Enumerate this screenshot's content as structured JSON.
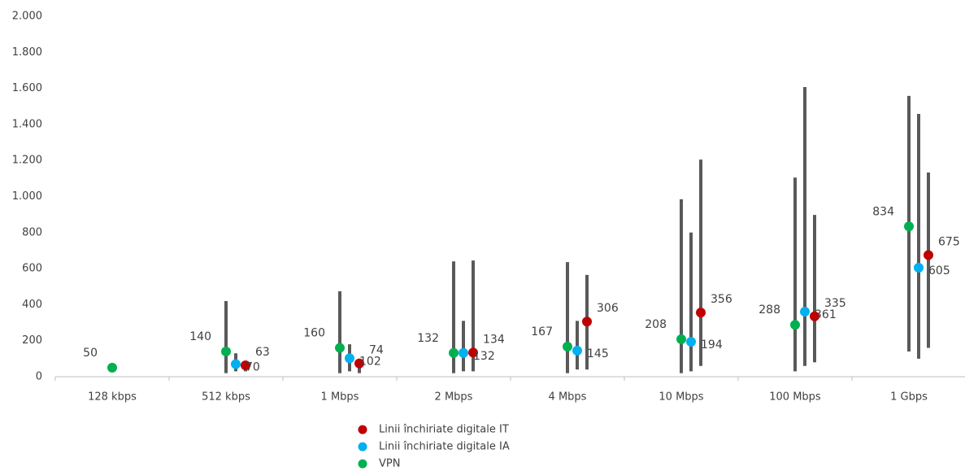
{
  "chart_data": {
    "type": "dot-range",
    "categories": [
      "128 kbps",
      "512 kbps",
      "1 Mbps",
      "2 Mbps",
      "4 Mbps",
      "10 Mbps",
      "100 Mbps",
      "1 Gbps"
    ],
    "series": [
      {
        "name": "Linii închiriate digitale IT",
        "color": "#c00000",
        "label_color": "#c00000",
        "values": [
          null,
          63,
          74,
          134,
          306,
          356,
          335,
          675
        ],
        "min": [
          null,
          30,
          20,
          30,
          40,
          60,
          80,
          160
        ],
        "max": [
          null,
          80,
          90,
          645,
          565,
          1205,
          898,
          1133
        ]
      },
      {
        "name": "Linii închiriate digitale IA",
        "color": "#00b0f0",
        "label_color": "#00b0f0",
        "values": [
          null,
          70,
          102,
          132,
          145,
          194,
          361,
          605
        ],
        "min": [
          null,
          30,
          30,
          30,
          40,
          30,
          60,
          100
        ],
        "max": [
          null,
          130,
          180,
          310,
          310,
          800,
          1607,
          1458
        ]
      },
      {
        "name": "VPN",
        "color": "#00b050",
        "label_color": "#1f3864",
        "values": [
          50,
          140,
          160,
          132,
          167,
          208,
          288,
          834
        ],
        "min": [
          null,
          20,
          20,
          20,
          20,
          20,
          30,
          140
        ],
        "max": [
          null,
          420,
          474,
          640,
          636,
          985,
          1105,
          1558
        ]
      }
    ],
    "range_color": "#595959",
    "ylim": [
      0,
      2000
    ],
    "yticks": [
      0,
      200,
      400,
      600,
      800,
      {
        "value": 1000,
        "label": "1.000"
      },
      {
        "value": 1200,
        "label": "1.200"
      },
      {
        "value": 1400,
        "label": "1.400"
      },
      {
        "value": 1600,
        "label": "1.600"
      },
      {
        "value": 1800,
        "label": "1.800"
      },
      {
        "value": 2000,
        "label": "2.000"
      }
    ],
    "grid": false,
    "legend": "bottom"
  }
}
